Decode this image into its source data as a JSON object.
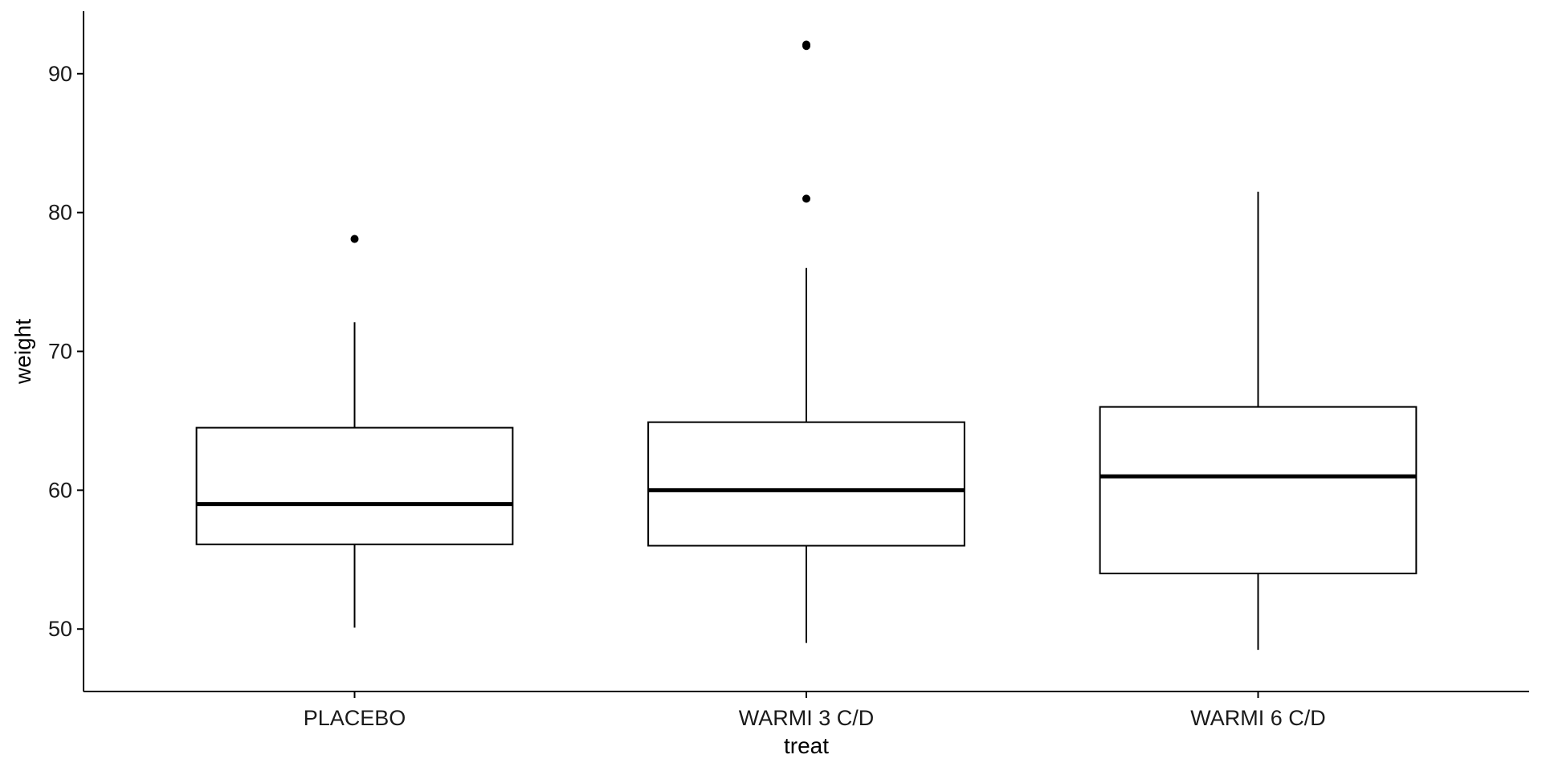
{
  "chart_data": {
    "type": "boxplot",
    "title": "",
    "xlabel": "treat",
    "ylabel": "weight",
    "ylim": [
      45.5,
      94.5
    ],
    "yticks": [
      50,
      60,
      70,
      80,
      90
    ],
    "yticks_labels": [
      "50",
      "60",
      "70",
      "80",
      "90"
    ],
    "grid": false,
    "categories": [
      "PLACEBO",
      "WARMI 3 C/D",
      "WARMI 6 C/D"
    ],
    "boxes": [
      {
        "category": "PLACEBO",
        "whisker_low": 50.1,
        "q1": 56.1,
        "median": 59.0,
        "q3": 64.5,
        "whisker_high": 72.1,
        "outliers": [
          78.1
        ]
      },
      {
        "category": "WARMI 3 C/D",
        "whisker_low": 49.0,
        "q1": 56.0,
        "median": 60.0,
        "q3": 64.9,
        "whisker_high": 76.0,
        "outliers": [
          81.0,
          92.0,
          92.1
        ]
      },
      {
        "category": "WARMI 6 C/D",
        "whisker_low": 48.5,
        "q1": 54.0,
        "median": 61.0,
        "q3": 66.0,
        "whisker_high": 81.5,
        "outliers": []
      }
    ]
  }
}
